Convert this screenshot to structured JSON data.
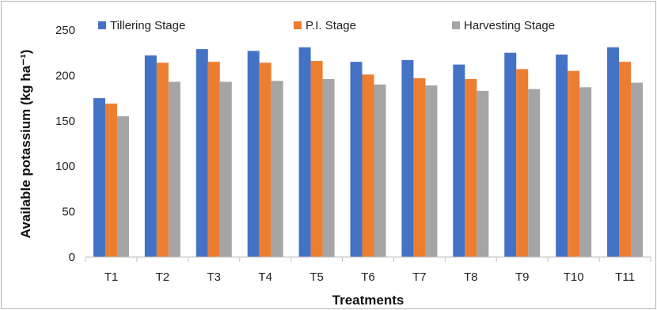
{
  "chart_data": {
    "type": "bar",
    "title": "",
    "xlabel": "Treatments",
    "ylabel": "Available potassium (kg ha⁻¹)",
    "ylim": [
      0,
      250
    ],
    "yticks": [
      0,
      50,
      100,
      150,
      200,
      250
    ],
    "grid": false,
    "legend_position": "top",
    "categories": [
      "T1",
      "T2",
      "T3",
      "T4",
      "T5",
      "T6",
      "T7",
      "T8",
      "T9",
      "T10",
      "T11"
    ],
    "series": [
      {
        "name": "Tillering Stage",
        "color": "#4472c4",
        "values": [
          175,
          222,
          229,
          227,
          231,
          215,
          217,
          212,
          225,
          223,
          231
        ]
      },
      {
        "name": "P.I. Stage",
        "color": "#ed7d31",
        "values": [
          169,
          214,
          215,
          214,
          216,
          201,
          197,
          196,
          207,
          205,
          215
        ]
      },
      {
        "name": "Harvesting Stage",
        "color": "#a5a5a5",
        "values": [
          155,
          193,
          193,
          194,
          196,
          190,
          189,
          183,
          185,
          187,
          192
        ]
      }
    ]
  }
}
